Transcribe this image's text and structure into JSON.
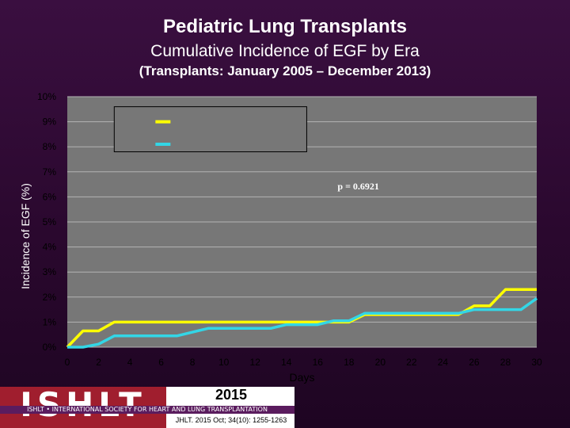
{
  "header": {
    "title": "Pediatric Lung Transplants",
    "subtitle": "Cumulative Incidence of EGF by Era",
    "period": "(Transplants: January 2005 – December 2013)"
  },
  "chart_data": {
    "type": "line",
    "xlabel": "Days",
    "ylabel": "Incidence of EGF (%)",
    "xlim": [
      0,
      30
    ],
    "ylim": [
      0,
      10
    ],
    "x_ticks": [
      "0",
      "2",
      "4",
      "6",
      "8",
      "10",
      "12",
      "14",
      "16",
      "18",
      "20",
      "22",
      "24",
      "26",
      "28",
      "30"
    ],
    "y_ticks": [
      "0%",
      "1%",
      "2%",
      "3%",
      "4%",
      "5%",
      "6%",
      "7%",
      "8%",
      "9%",
      "10%"
    ],
    "grid": true,
    "legend_position": "top",
    "annotation": "p = 0.6921",
    "series": [
      {
        "color": "#ffff00",
        "points": [
          [
            0,
            0
          ],
          [
            1,
            0.65
          ],
          [
            2,
            0.65
          ],
          [
            3,
            1.0
          ],
          [
            15,
            1.0
          ],
          [
            18,
            1.0
          ],
          [
            19,
            1.3
          ],
          [
            25,
            1.3
          ],
          [
            26,
            1.65
          ],
          [
            27,
            1.65
          ],
          [
            28,
            2.3
          ],
          [
            30,
            2.3
          ]
        ]
      },
      {
        "color": "#33d6e6",
        "points": [
          [
            0,
            0
          ],
          [
            1,
            0
          ],
          [
            2,
            0.12
          ],
          [
            3,
            0.45
          ],
          [
            7,
            0.45
          ],
          [
            9,
            0.75
          ],
          [
            13,
            0.75
          ],
          [
            14,
            0.9
          ],
          [
            16,
            0.9
          ],
          [
            17,
            1.05
          ],
          [
            18,
            1.05
          ],
          [
            19,
            1.35
          ],
          [
            25,
            1.35
          ],
          [
            26,
            1.5
          ],
          [
            29,
            1.5
          ],
          [
            30,
            1.95
          ]
        ]
      }
    ]
  },
  "colors": {
    "plot_bg": "#777777",
    "grid": "#b4b4b4",
    "background": "#2b0a2f",
    "logo_red": "#a01e2e"
  },
  "footer": {
    "logo": "ISHLT",
    "society": "ISHLT • INTERNATIONAL SOCIETY FOR HEART AND LUNG TRANSPLANTATION",
    "year": "2015",
    "citation": "JHLT. 2015 Oct; 34(10): 1255-1263"
  }
}
